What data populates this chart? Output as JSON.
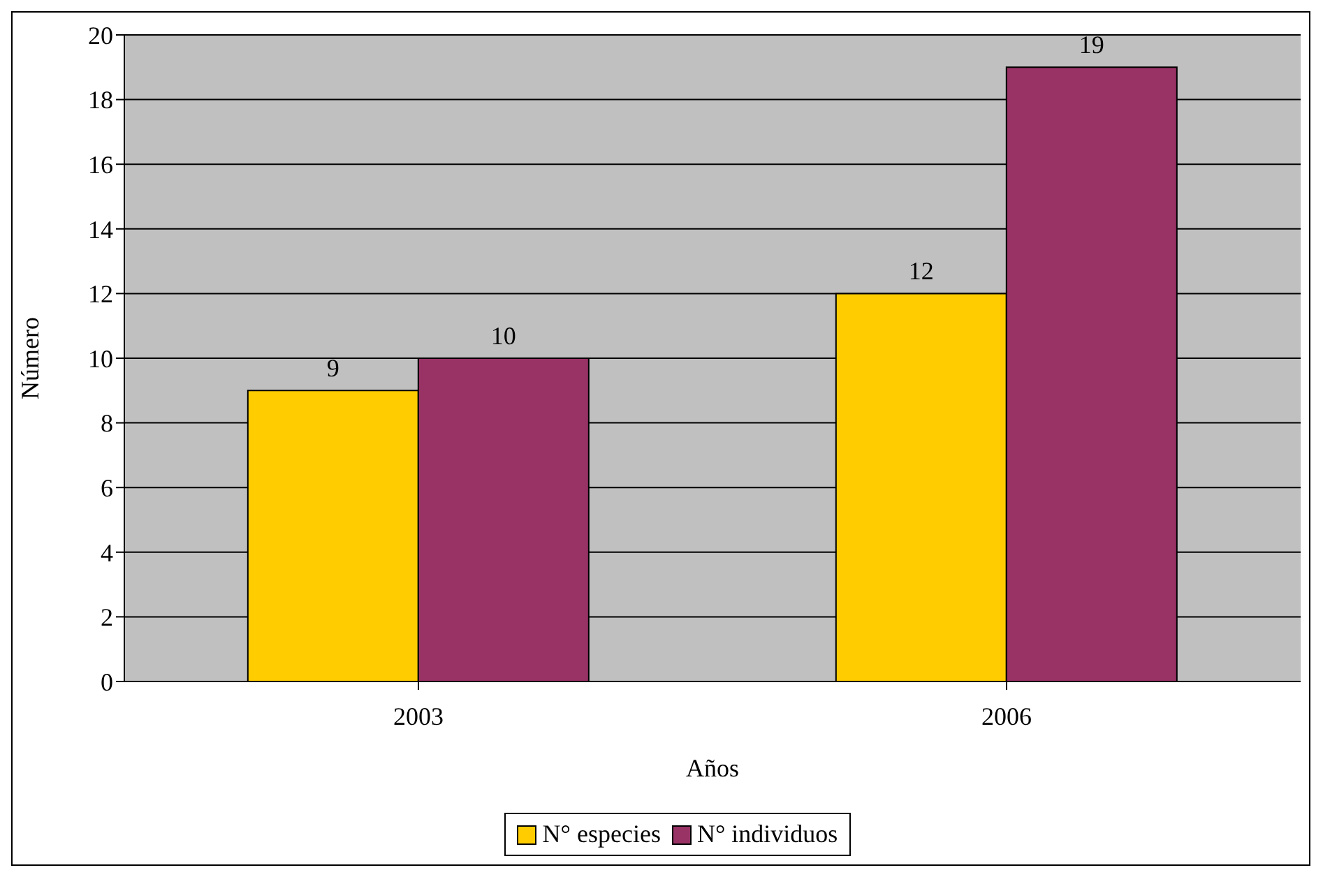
{
  "chart_data": {
    "type": "bar",
    "xlabel": "Años",
    "ylabel": "Número",
    "categories": [
      "2003",
      "2006"
    ],
    "series": [
      {
        "name": "N° especies",
        "color": "#ffcc00",
        "values": [
          9,
          12
        ]
      },
      {
        "name": "N° individuos",
        "color": "#993366",
        "values": [
          10,
          19
        ]
      }
    ],
    "ylim": [
      0,
      20
    ],
    "yticks": [
      0,
      2,
      4,
      6,
      8,
      10,
      12,
      14,
      16,
      18,
      20
    ],
    "grid": "y",
    "legend": "bottom",
    "data_labels": true
  }
}
